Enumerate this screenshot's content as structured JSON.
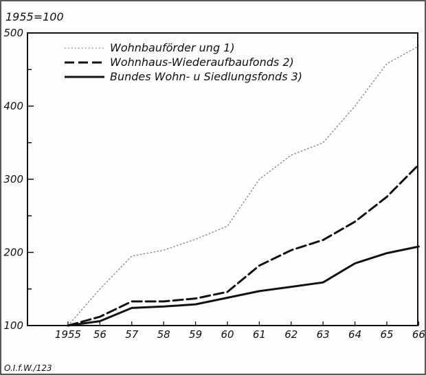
{
  "chart_data": {
    "type": "line",
    "ylabel": "1955=100",
    "source": "O.I.f.W./123",
    "x": [
      "1955",
      "56",
      "57",
      "58",
      "59",
      "60",
      "61",
      "62",
      "63",
      "64",
      "65",
      "66"
    ],
    "xlim": [
      1955,
      1966
    ],
    "ylim": [
      100,
      500
    ],
    "y_ticks": [
      "100",
      "200",
      "300",
      "400",
      "500"
    ],
    "legend_position": "top-left",
    "grid": false,
    "series": [
      {
        "name": "Wohnbauförder ung 1)",
        "style": "dotted",
        "color": "#8a8a8a",
        "values": [
          100,
          150,
          195,
          203,
          218,
          236,
          300,
          333,
          350,
          400,
          458,
          482
        ]
      },
      {
        "name": "Wohnhaus-Wiederaufbaufonds 2)",
        "style": "dashed",
        "color": "#111111",
        "values": [
          100,
          112,
          133,
          133,
          137,
          146,
          182,
          203,
          217,
          242,
          276,
          320
        ]
      },
      {
        "name": "Bundes Wohn- u Siedlungsfonds 3)",
        "style": "solid",
        "color": "#111111",
        "values": [
          100,
          106,
          124,
          126,
          129,
          138,
          147,
          153,
          159,
          185,
          199,
          208
        ]
      }
    ]
  }
}
